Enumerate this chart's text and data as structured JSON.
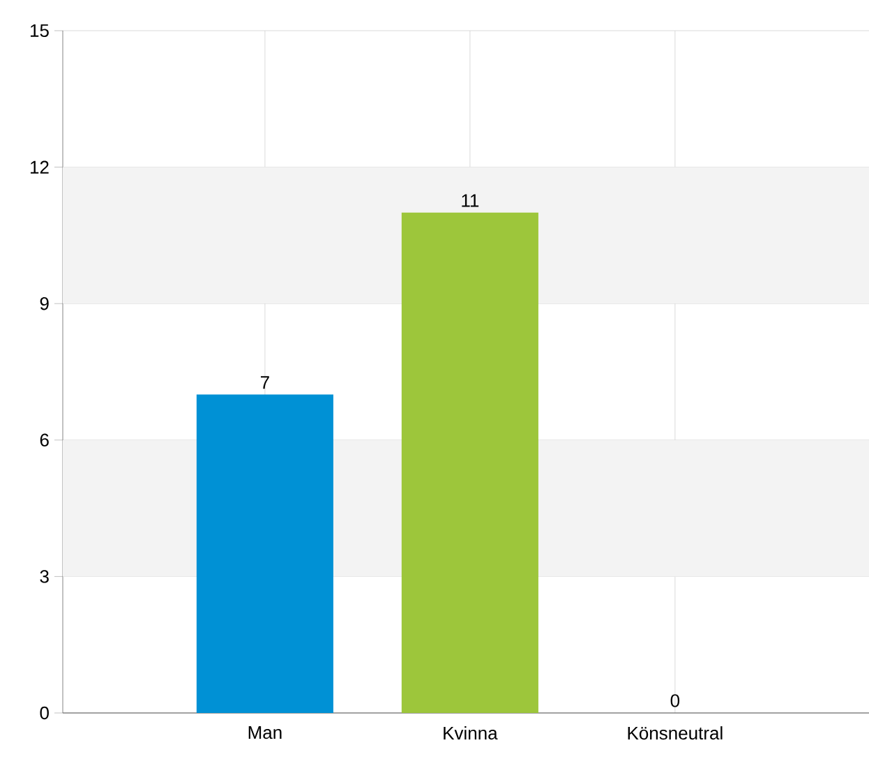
{
  "chart_data": {
    "type": "bar",
    "categories": [
      "Man",
      "Kvinna",
      "Könsneutral"
    ],
    "values": [
      7,
      11,
      0
    ],
    "colors": [
      "#0091d5",
      "#9dc63b",
      "#f5a623"
    ],
    "ylim": [
      0,
      15
    ],
    "yticks": [
      0,
      3,
      6,
      9,
      12,
      15
    ],
    "grid": true,
    "data_labels": true,
    "bands": [
      {
        "axis": "y",
        "from": 3,
        "to": 6,
        "color": "#f3f3f3"
      },
      {
        "axis": "y",
        "from": 9,
        "to": 12,
        "color": "#f3f3f3"
      }
    ]
  }
}
